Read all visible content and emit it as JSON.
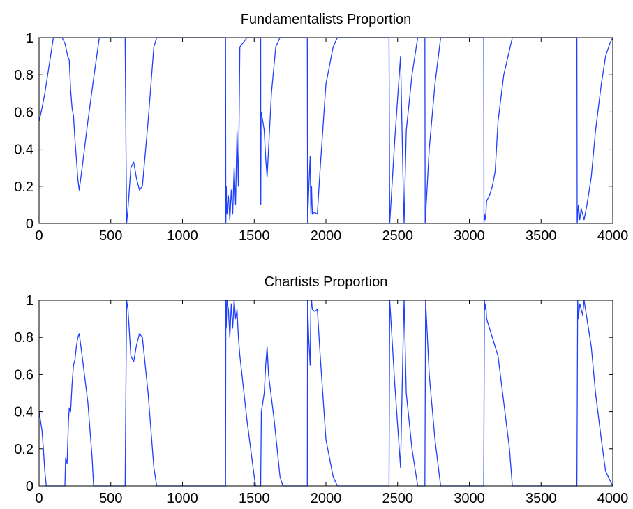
{
  "figure": {
    "background": "#ffffff",
    "line_color": "#1f3fff"
  },
  "chart_data": [
    {
      "type": "line",
      "title": "Fundamentalists Proportion",
      "xlabel": "",
      "ylabel": "",
      "xlim": [
        0,
        4000
      ],
      "ylim": [
        0,
        1
      ],
      "xticks": [
        0,
        500,
        1000,
        1500,
        2000,
        2500,
        3000,
        3500,
        4000
      ],
      "yticks": [
        0,
        0.2,
        0.4,
        0.6,
        0.8,
        1
      ],
      "ytick_labels": [
        "0",
        "0.2",
        "0.4",
        "0.6",
        "0.8",
        "1"
      ],
      "grid": false,
      "series": [
        {
          "color": "#1f3fff",
          "x": [
            0,
            20,
            40,
            60,
            80,
            100,
            160,
            180,
            200,
            210,
            220,
            230,
            240,
            250,
            260,
            270,
            280,
            300,
            340,
            380,
            420,
            600,
            610,
            620,
            640,
            660,
            680,
            700,
            720,
            760,
            800,
            820,
            1300,
            1302,
            1305,
            1310,
            1320,
            1330,
            1340,
            1350,
            1360,
            1370,
            1380,
            1390,
            1400,
            1450,
            1500,
            1545,
            1546,
            1548,
            1560,
            1570,
            1580,
            1590,
            1600,
            1620,
            1650,
            1680,
            1700,
            1870,
            1872,
            1880,
            1890,
            1895,
            1900,
            1905,
            1920,
            1940,
            1960,
            2000,
            2050,
            2080,
            2440,
            2445,
            2480,
            2520,
            2540,
            2545,
            2560,
            2600,
            2640,
            2690,
            2692,
            2720,
            2760,
            2800,
            3100,
            3102,
            3105,
            3110,
            3115,
            3120,
            3140,
            3160,
            3180,
            3200,
            3240,
            3300,
            3750,
            3752,
            3760,
            3770,
            3780,
            3790,
            3800,
            3820,
            3850,
            3880,
            3920,
            3950,
            3980,
            4000
          ],
          "y": [
            0.55,
            0.62,
            0.7,
            0.8,
            0.9,
            1,
            1,
            0.97,
            0.9,
            0.88,
            0.72,
            0.62,
            0.58,
            0.45,
            0.35,
            0.24,
            0.18,
            0.3,
            0.55,
            0.78,
            1,
            1,
            0,
            0.08,
            0.3,
            0.33,
            0.24,
            0.18,
            0.2,
            0.55,
            0.95,
            1,
            1,
            0,
            0.2,
            0.05,
            0.15,
            0.02,
            0.18,
            0.05,
            0.3,
            0.1,
            0.5,
            0.2,
            0.95,
            1,
            1,
            1,
            0.1,
            0.6,
            0.55,
            0.5,
            0.35,
            0.25,
            0.4,
            0.7,
            0.95,
            1,
            1,
            1,
            0,
            0.18,
            0.36,
            0.05,
            0.2,
            0.05,
            0.06,
            0.05,
            0.3,
            0.75,
            0.95,
            1,
            1,
            0,
            0.45,
            0.9,
            0.15,
            0,
            0.5,
            0.8,
            1,
            1,
            0,
            0.4,
            0.75,
            1,
            1,
            0,
            0.05,
            0.02,
            0.05,
            0.12,
            0.15,
            0.2,
            0.28,
            0.55,
            0.8,
            1,
            1,
            0,
            0.1,
            0.02,
            0.08,
            0.05,
            0.02,
            0.1,
            0.25,
            0.5,
            0.75,
            0.9,
            0.97,
            1
          ]
        }
      ]
    },
    {
      "type": "line",
      "title": "Chartists Proportion",
      "xlabel": "",
      "ylabel": "",
      "xlim": [
        0,
        4000
      ],
      "ylim": [
        0,
        1
      ],
      "xticks": [
        0,
        500,
        1000,
        1500,
        2000,
        2500,
        3000,
        3500,
        4000
      ],
      "yticks": [
        0,
        0.2,
        0.4,
        0.6,
        0.8,
        1
      ],
      "ytick_labels": [
        "0",
        "0.2",
        "0.4",
        "0.6",
        "0.8",
        "1"
      ],
      "grid": false,
      "series": [
        {
          "color": "#1f3fff",
          "x": [
            0,
            10,
            20,
            30,
            40,
            50,
            180,
            185,
            195,
            205,
            210,
            220,
            230,
            240,
            250,
            260,
            270,
            280,
            300,
            340,
            370,
            380,
            600,
            610,
            620,
            640,
            660,
            680,
            700,
            720,
            760,
            800,
            820,
            1300,
            1302,
            1305,
            1310,
            1320,
            1330,
            1340,
            1350,
            1360,
            1370,
            1380,
            1390,
            1400,
            1450,
            1500,
            1510,
            1545,
            1550,
            1560,
            1570,
            1580,
            1590,
            1600,
            1640,
            1680,
            1700,
            1870,
            1872,
            1880,
            1890,
            1895,
            1900,
            1905,
            1920,
            1940,
            1960,
            2000,
            2050,
            2080,
            2440,
            2445,
            2480,
            2520,
            2540,
            2545,
            2560,
            2600,
            2640,
            2660,
            2690,
            2695,
            2720,
            2760,
            2800,
            3100,
            3105,
            3110,
            3115,
            3120,
            3140,
            3160,
            3180,
            3200,
            3240,
            3280,
            3300,
            3750,
            3755,
            3760,
            3770,
            3780,
            3790,
            3800,
            3820,
            3850,
            3880,
            3920,
            3950,
            3980,
            4000
          ],
          "y": [
            0.4,
            0.35,
            0.3,
            0.2,
            0.08,
            0,
            0,
            0.15,
            0.12,
            0.35,
            0.42,
            0.4,
            0.55,
            0.65,
            0.68,
            0.75,
            0.8,
            0.82,
            0.7,
            0.45,
            0.15,
            0,
            0,
            1,
            0.95,
            0.7,
            0.67,
            0.76,
            0.82,
            0.8,
            0.5,
            0.1,
            0,
            0,
            1,
            0.85,
            1,
            0.95,
            0.8,
            0.98,
            0.85,
            1,
            0.9,
            0.95,
            0.8,
            0.7,
            0.35,
            0.05,
            0,
            0,
            0.4,
            0.45,
            0.5,
            0.65,
            0.75,
            0.6,
            0.35,
            0.05,
            0,
            0,
            1,
            0.8,
            0.65,
            0.95,
            1,
            0.95,
            0.94,
            0.95,
            0.7,
            0.25,
            0.05,
            0,
            0,
            1,
            0.55,
            0.1,
            0.85,
            1,
            0.5,
            0.2,
            0,
            0,
            0,
            1,
            0.6,
            0.25,
            0,
            0,
            1,
            0.95,
            0.98,
            0.9,
            0.85,
            0.8,
            0.75,
            0.7,
            0.45,
            0.2,
            0,
            0,
            1,
            0.9,
            0.98,
            0.95,
            0.92,
            1,
            0.9,
            0.75,
            0.5,
            0.25,
            0.08,
            0.03,
            0
          ]
        }
      ]
    }
  ]
}
